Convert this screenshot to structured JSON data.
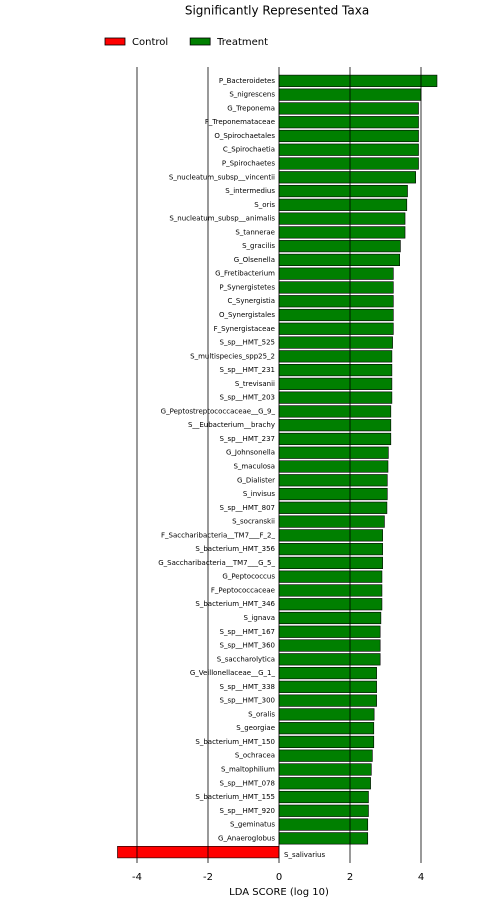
{
  "chart_data": {
    "type": "bar",
    "orientation": "horizontal",
    "title": "Significantly Represented Taxa",
    "x_label": "LDA SCORE (log 10)",
    "xlim": [
      -5,
      5
    ],
    "xticks": [
      -4,
      -2,
      0,
      2,
      4
    ],
    "grid": true,
    "legend": "top",
    "categories": [
      "P_Bacteroidetes",
      "S_nigrescens",
      "G_Treponema",
      "F_Treponemataceae",
      "O_Spirochaetales",
      "C_Spirochaetia",
      "P_Spirochaetes",
      "S_nucleatum_subsp__vincentii",
      "S_intermedius",
      "S_oris",
      "S_nucleatum_subsp__animalis",
      "S_tannerae",
      "S_gracilis",
      "G_Olsenella",
      "G_Fretibacterium",
      "P_Synergistetes",
      "C_Synergistia",
      "O_Synergistales",
      "F_Synergistaceae",
      "S_sp__HMT_525",
      "S_multispecies_spp25_2",
      "S_sp__HMT_231",
      "S_trevisanii",
      "S_sp__HMT_203",
      "G_Peptostreptococcaceae__G_9_",
      "S__Eubacterium__brachy",
      "S_sp__HMT_237",
      "G_Johnsonella",
      "S_maculosa",
      "G_Dialister",
      "S_invisus",
      "S_sp__HMT_807",
      "S_socranskii",
      "F_Saccharibacteria__TM7___F_2_",
      "S_bacterium_HMT_356",
      "G_Saccharibacteria__TM7___G_5_",
      "G_Peptococcus",
      "F_Peptococcaceae",
      "S_bacterium_HMT_346",
      "S_ignava",
      "S_sp__HMT_167",
      "S_sp__HMT_360",
      "S_saccharolytica",
      "G_Veillonellaceae__G_1_",
      "S_sp__HMT_338",
      "S_sp__HMT_300",
      "S_oralis",
      "S_georgiae",
      "S_bacterium_HMT_150",
      "S_ochracea",
      "S_maltophilium",
      "S_sp__HMT_078",
      "S_bacterium_HMT_155",
      "S_sp__HMT_920",
      "S_geminatus",
      "G_Anaeroglobus",
      "S_salivarius"
    ],
    "series": [
      {
        "name": "Control",
        "color": "#ff0000",
        "values": [
          null,
          null,
          null,
          null,
          null,
          null,
          null,
          null,
          null,
          null,
          null,
          null,
          null,
          null,
          null,
          null,
          null,
          null,
          null,
          null,
          null,
          null,
          null,
          null,
          null,
          null,
          null,
          null,
          null,
          null,
          null,
          null,
          null,
          null,
          null,
          null,
          null,
          null,
          null,
          null,
          null,
          null,
          null,
          null,
          null,
          null,
          null,
          null,
          null,
          null,
          null,
          null,
          null,
          null,
          null,
          null,
          -4.55
        ]
      },
      {
        "name": "Treatment",
        "color": "#007f00",
        "values": [
          4.45,
          4.0,
          3.93,
          3.93,
          3.93,
          3.93,
          3.93,
          3.85,
          3.62,
          3.6,
          3.55,
          3.55,
          3.42,
          3.4,
          3.22,
          3.22,
          3.22,
          3.22,
          3.22,
          3.2,
          3.18,
          3.18,
          3.18,
          3.18,
          3.15,
          3.15,
          3.15,
          3.08,
          3.07,
          3.05,
          3.05,
          3.04,
          2.97,
          2.92,
          2.92,
          2.92,
          2.9,
          2.9,
          2.9,
          2.87,
          2.85,
          2.85,
          2.85,
          2.75,
          2.75,
          2.75,
          2.68,
          2.67,
          2.67,
          2.63,
          2.6,
          2.58,
          2.52,
          2.52,
          2.5,
          2.5,
          null
        ]
      }
    ]
  }
}
